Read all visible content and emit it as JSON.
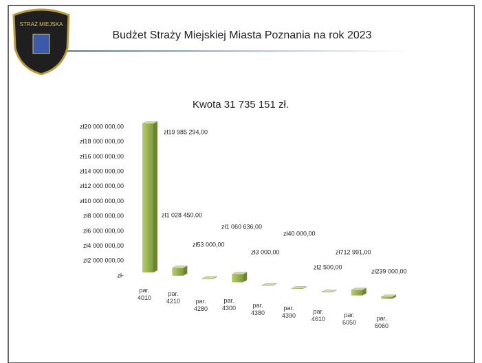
{
  "logo_text": "STRAŻ MIEJSKA",
  "header_title": "Budżet Straży Miejskiej Miasta Poznania na rok 2023",
  "chart_data": {
    "type": "bar",
    "title": "Kwota 31 735 151 zł.",
    "categories": [
      "par. 4010",
      "par. 4210",
      "par. 4280",
      "par. 4300",
      "par. 4380",
      "par. 4390",
      "par. 4610",
      "par. 6050",
      "par. 6060"
    ],
    "values": [
      19985294,
      1028450,
      53000,
      1060636,
      3000,
      40000,
      2500,
      712991,
      239000
    ],
    "value_labels": [
      "zł19 985 294,00",
      "zł1 028 450,00",
      "zł53 000,00",
      "zł1 060 636,00",
      "zł3 000,00",
      "zł40 000,00",
      "zł2 500,00",
      "zł712 991,00",
      "zł239 000,00"
    ],
    "color": "#9bbb59",
    "ylim": [
      0,
      20000000
    ],
    "yticks": [
      {
        "value": 0,
        "label": "zł-"
      },
      {
        "value": 2000000,
        "label": "zł2 000 000,00"
      },
      {
        "value": 4000000,
        "label": "zł4 000 000,00"
      },
      {
        "value": 6000000,
        "label": "zł6 000 000,00"
      },
      {
        "value": 8000000,
        "label": "zł8 000 000,00"
      },
      {
        "value": 10000000,
        "label": "zł10 000 000,00"
      },
      {
        "value": 12000000,
        "label": "zł12 000 000,00"
      },
      {
        "value": 14000000,
        "label": "zł14 000 000,00"
      },
      {
        "value": 16000000,
        "label": "zł16 000 000,00"
      },
      {
        "value": 18000000,
        "label": "zł18 000 000,00"
      },
      {
        "value": 20000000,
        "label": "zł20 000 000,00"
      }
    ],
    "grid": false
  }
}
